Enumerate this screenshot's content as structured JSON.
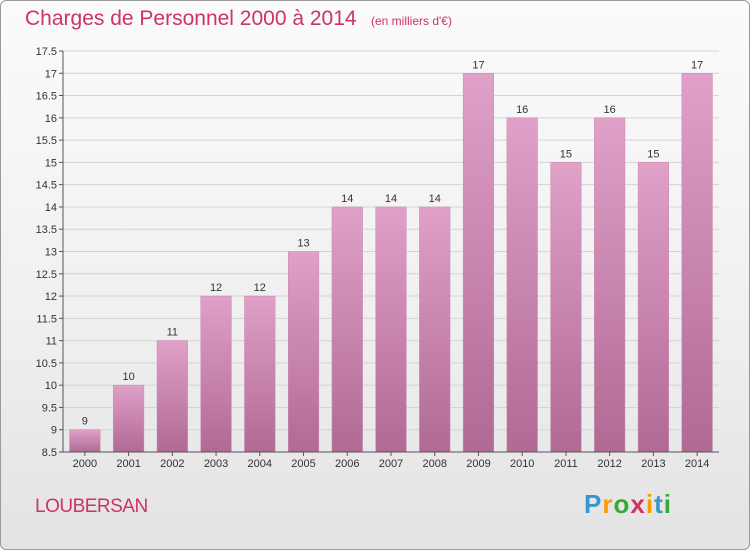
{
  "title": "Charges de Personnel 2000 à 2014",
  "subtitle": "(en milliers d'€)",
  "place": "LOUBERSAN",
  "logo": {
    "letters": [
      "P",
      "r",
      "o",
      "x",
      "i",
      "t",
      "i"
    ],
    "colors": [
      "#3399cc",
      "#ff9900",
      "#33aa33",
      "#cc3366",
      "#ff9900",
      "#3399cc",
      "#33aa33"
    ]
  },
  "chart_data": {
    "type": "bar",
    "categories": [
      "2000",
      "2001",
      "2002",
      "2003",
      "2004",
      "2005",
      "2006",
      "2007",
      "2008",
      "2009",
      "2010",
      "2011",
      "2012",
      "2013",
      "2014"
    ],
    "values": [
      9,
      10,
      11,
      12,
      12,
      13,
      14,
      14,
      14,
      17,
      16,
      15,
      16,
      15,
      17
    ],
    "data_labels": [
      "9",
      "10",
      "11",
      "12",
      "12",
      "13",
      "14",
      "14",
      "14",
      "17",
      "16",
      "15",
      "16",
      "15",
      "17"
    ],
    "ylim": [
      8.5,
      17.5
    ],
    "yticks": [
      8.5,
      9,
      9.5,
      10,
      10.5,
      11,
      11.5,
      12,
      12.5,
      13,
      13.5,
      14,
      14.5,
      15,
      15.5,
      16,
      16.5,
      17,
      17.5
    ],
    "ytick_labels": [
      "8.5",
      "9",
      "9.5",
      "10",
      "10.5",
      "11",
      "11.5",
      "12",
      "12.5",
      "13",
      "13.5",
      "14",
      "14.5",
      "15",
      "15.5",
      "16",
      "16.5",
      "17",
      "17.5"
    ],
    "bar_color": "#e0a0c8",
    "bar_color_dark": "#b06a94",
    "grid": true
  }
}
